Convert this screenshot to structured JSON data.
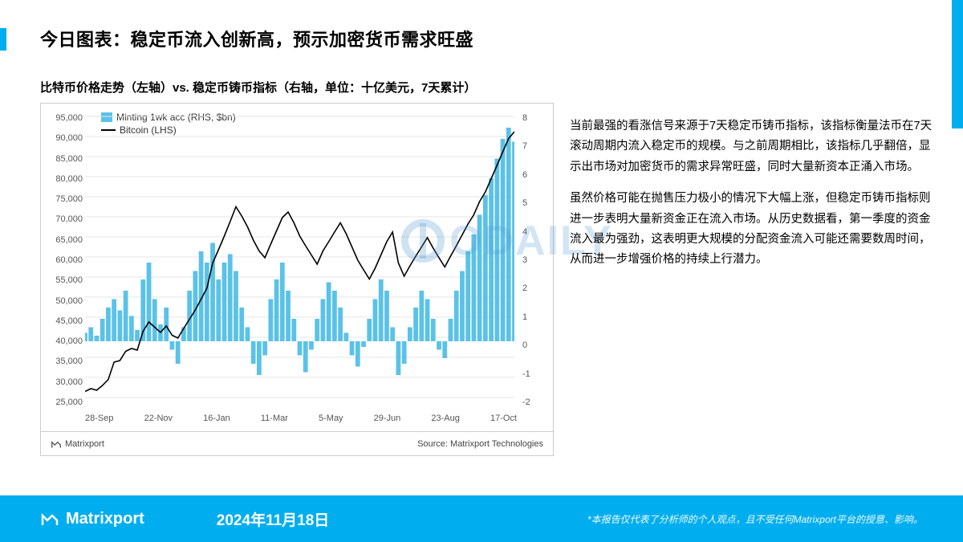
{
  "header": {
    "title": "今日图表：稳定币流入创新高，预示加密货币需求旺盛",
    "subtitle": "比特币价格走势（左轴）vs. 稳定币铸币指标（右轴，单位：十亿美元，7天累计）"
  },
  "chart": {
    "type": "combo-bar-line",
    "legend_bar": "Minting 1wk acc (RHS, $bn)",
    "legend_line": "Bitcoin (LHS)",
    "left_axis": {
      "min": 25000,
      "max": 95000,
      "step": 5000,
      "labels": [
        "95,000",
        "90,000",
        "85,000",
        "80,000",
        "75,000",
        "70,000",
        "65,000",
        "60,000",
        "55,000",
        "50,000",
        "45,000",
        "40,000",
        "35,000",
        "30,000",
        "25,000"
      ]
    },
    "right_axis": {
      "min": -2,
      "max": 8,
      "step": 1,
      "labels": [
        "8",
        "7",
        "6",
        "5",
        "4",
        "3",
        "2",
        "1",
        "0",
        "-1",
        "-2"
      ]
    },
    "x_labels": [
      "28-Sep",
      "22-Nov",
      "16-Jan",
      "11-Mar",
      "5-May",
      "29-Jun",
      "23-Aug",
      "17-Oct"
    ],
    "bitcoin_line": [
      26500,
      27200,
      26800,
      28000,
      29500,
      33800,
      34200,
      36500,
      37200,
      36800,
      41500,
      43800,
      42500,
      41200,
      42800,
      40500,
      39800,
      42200,
      44500,
      46800,
      49500,
      52200,
      58500,
      61800,
      65200,
      68800,
      72500,
      70200,
      67500,
      64200,
      61500,
      59800,
      63200,
      66500,
      69800,
      71200,
      68500,
      65200,
      62800,
      60500,
      58200,
      61500,
      63800,
      66200,
      68500,
      65800,
      62500,
      59200,
      56800,
      54500,
      57200,
      60500,
      63800,
      66200,
      58500,
      55200,
      57800,
      60200,
      62500,
      64800,
      62200,
      59800,
      57500,
      60200,
      62800,
      65500,
      68200,
      70500,
      73800,
      76200,
      79500,
      82800,
      86200,
      89500,
      91200
    ],
    "minting_bars": [
      0.3,
      0.5,
      0.2,
      0.8,
      1.2,
      1.5,
      1.1,
      1.8,
      0.9,
      0.4,
      2.2,
      2.8,
      1.5,
      0.6,
      1.2,
      -0.3,
      -0.8,
      0.5,
      1.8,
      2.5,
      3.2,
      2.8,
      3.5,
      2.2,
      2.8,
      3.1,
      2.5,
      1.2,
      0.5,
      -0.8,
      -1.2,
      -0.5,
      1.5,
      2.2,
      2.8,
      1.8,
      0.8,
      -0.5,
      -1.1,
      -0.3,
      0.8,
      1.5,
      2.1,
      1.8,
      1.2,
      0.3,
      -0.5,
      -0.9,
      -0.2,
      0.8,
      1.5,
      2.2,
      1.8,
      0.5,
      -1.2,
      -0.8,
      0.5,
      1.2,
      1.8,
      1.5,
      0.8,
      -0.3,
      -0.6,
      0.8,
      1.8,
      2.5,
      3.2,
      3.8,
      4.5,
      5.2,
      5.8,
      6.5,
      7.2,
      7.6,
      7.1
    ],
    "colors": {
      "bar_fill": "#5bc2e7",
      "line": "#000000",
      "grid": "#e5e5e5",
      "bg": "#ffffff",
      "border": "#cccccc"
    },
    "footer_brand": "Matrixport",
    "footer_source": "Source: Matrixport Technologies"
  },
  "body_text": {
    "p1": "当前最强的看涨信号来源于7天稳定币铸币指标，该指标衡量法币在7天滚动周期内流入稳定币的规模。与之前周期相比，该指标几乎翻倍，显示出市场对加密货币的需求异常旺盛，同时大量新资本正涌入市场。",
    "p2": "虽然价格可能在抛售压力极小的情况下大幅上涨，但稳定币铸币指标则进一步表明大量新资金正在流入市场。从历史数据看，第一季度的资金流入最为强劲，这表明更大规模的分配资金流入可能还需要数周时间，从而进一步增强价格的持续上行潜力。"
  },
  "watermark": "ODAILY",
  "footer": {
    "brand": "Matrixport",
    "date": "2024年11月18日",
    "disclaimer": "*本报告仅代表了分析师的个人观点，且不受任何Matrixport平台的授意、影响。"
  }
}
